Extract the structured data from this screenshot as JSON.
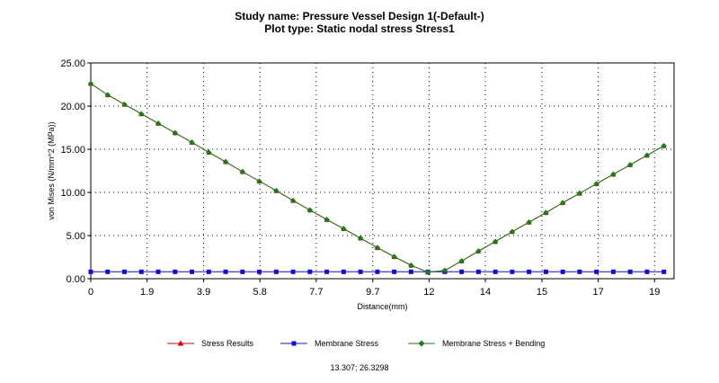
{
  "chart_data": {
    "type": "line",
    "title": "Study name: Pressure Vessel Design 1(-Default-)",
    "subtitle": "Plot type: Static nodal stress Stress1",
    "xlabel": "Distance(mm)",
    "ylabel": "von Mises (N/mm^2 (MPa))",
    "xlim": [
      0,
      20.0
    ],
    "ylim": [
      0,
      25
    ],
    "grid": true,
    "x_ticks": [
      {
        "label": "0",
        "value": 0
      },
      {
        "label": "1.9",
        "value": 1.93
      },
      {
        "label": "3.9",
        "value": 3.87
      },
      {
        "label": "5.8",
        "value": 5.8
      },
      {
        "label": "7.7",
        "value": 7.73
      },
      {
        "label": "9.7",
        "value": 9.67
      },
      {
        "label": "12",
        "value": 11.6
      },
      {
        "label": "14",
        "value": 13.53
      },
      {
        "label": "15",
        "value": 15.47
      },
      {
        "label": "17",
        "value": 17.4
      },
      {
        "label": "19",
        "value": 19.33
      }
    ],
    "y_ticks": [
      {
        "label": "0.00",
        "value": 0
      },
      {
        "label": "5.00",
        "value": 5
      },
      {
        "label": "10.00",
        "value": 10
      },
      {
        "label": "15.00",
        "value": 15
      },
      {
        "label": "20.00",
        "value": 20
      },
      {
        "label": "25.00",
        "value": 25
      }
    ],
    "series": [
      {
        "name": "Stress Results",
        "color": "#d40000",
        "marker": "triangle",
        "x": [
          0.0,
          0.578,
          1.156,
          1.734,
          2.312,
          2.89,
          3.468,
          4.046,
          4.624,
          5.202,
          5.78,
          6.358,
          6.936,
          7.514,
          8.092,
          8.67,
          9.248,
          9.826,
          10.404,
          10.982,
          11.56,
          12.138,
          12.716,
          13.294,
          13.872,
          14.45,
          15.028,
          15.606,
          16.184,
          16.762,
          17.34,
          17.918,
          18.496,
          19.074,
          19.652
        ],
        "values": [
          22.6,
          21.3,
          20.2,
          19.1,
          18.0,
          16.9,
          15.8,
          14.65,
          13.55,
          12.4,
          11.3,
          10.2,
          9.05,
          7.95,
          6.85,
          5.8,
          4.7,
          3.6,
          2.55,
          1.55,
          0.75,
          0.95,
          2.05,
          3.2,
          4.3,
          5.45,
          6.55,
          7.65,
          8.8,
          9.9,
          11.0,
          12.1,
          13.2,
          14.3,
          15.4
        ]
      },
      {
        "name": "Membrane Stress",
        "color": "#1010cc",
        "marker": "square",
        "x": [
          0.0,
          0.578,
          1.156,
          1.734,
          2.312,
          2.89,
          3.468,
          4.046,
          4.624,
          5.202,
          5.78,
          6.358,
          6.936,
          7.514,
          8.092,
          8.67,
          9.248,
          9.826,
          10.404,
          10.982,
          11.56,
          12.138,
          12.716,
          13.294,
          13.872,
          14.45,
          15.028,
          15.606,
          16.184,
          16.762,
          17.34,
          17.918,
          18.496,
          19.074,
          19.652
        ],
        "values": [
          0.8,
          0.8,
          0.8,
          0.8,
          0.8,
          0.8,
          0.8,
          0.8,
          0.8,
          0.8,
          0.8,
          0.8,
          0.8,
          0.8,
          0.8,
          0.8,
          0.8,
          0.8,
          0.8,
          0.8,
          0.8,
          0.8,
          0.8,
          0.8,
          0.8,
          0.8,
          0.8,
          0.8,
          0.8,
          0.8,
          0.8,
          0.8,
          0.8,
          0.8,
          0.8
        ]
      },
      {
        "name": "Membrane Stress + Bending",
        "color": "#1e7a1e",
        "marker": "diamond",
        "x": [
          0.0,
          0.578,
          1.156,
          1.734,
          2.312,
          2.89,
          3.468,
          4.046,
          4.624,
          5.202,
          5.78,
          6.358,
          6.936,
          7.514,
          8.092,
          8.67,
          9.248,
          9.826,
          10.404,
          10.982,
          11.56,
          12.138,
          12.716,
          13.294,
          13.872,
          14.45,
          15.028,
          15.606,
          16.184,
          16.762,
          17.34,
          17.918,
          18.496,
          19.074,
          19.652
        ],
        "values": [
          22.6,
          21.3,
          20.2,
          19.1,
          18.0,
          16.9,
          15.8,
          14.65,
          13.55,
          12.4,
          11.3,
          10.2,
          9.05,
          7.95,
          6.85,
          5.8,
          4.7,
          3.6,
          2.55,
          1.55,
          0.75,
          0.95,
          2.05,
          3.2,
          4.3,
          5.45,
          6.55,
          7.65,
          8.8,
          9.9,
          11.0,
          12.1,
          13.2,
          14.3,
          15.4
        ]
      }
    ],
    "legend_position": "bottom"
  },
  "cursor_readout": "13.307; 26.3298"
}
